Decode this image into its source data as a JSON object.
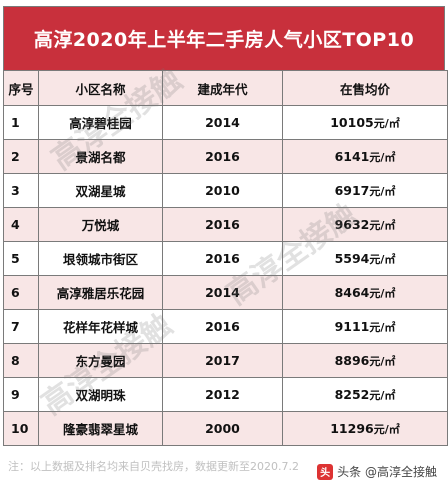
{
  "title": "高淳2020年上半年二手房人气小区TOP10",
  "headers": [
    "序号",
    "小区名称",
    "建成年代",
    "在售均价"
  ],
  "price_unit": "元/㎡",
  "rows": [
    {
      "rank": "1",
      "name": "高淳碧桂园",
      "year": "2014",
      "price": "10105"
    },
    {
      "rank": "2",
      "name": "景湖名都",
      "year": "2016",
      "price": "6141"
    },
    {
      "rank": "3",
      "name": "双湖星城",
      "year": "2010",
      "price": "6917"
    },
    {
      "rank": "4",
      "name": "万悦城",
      "year": "2016",
      "price": "9632"
    },
    {
      "rank": "5",
      "name": "垠领城市街区",
      "year": "2016",
      "price": "5594"
    },
    {
      "rank": "6",
      "name": "高淳雅居乐花园",
      "year": "2014",
      "price": "8464"
    },
    {
      "rank": "7",
      "name": "花样年花样城",
      "year": "2016",
      "price": "9111"
    },
    {
      "rank": "8",
      "name": "东方曼园",
      "year": "2017",
      "price": "8896"
    },
    {
      "rank": "9",
      "name": "双湖明珠",
      "year": "2012",
      "price": "8252"
    },
    {
      "rank": "10",
      "name": "隆豪翡翠星城",
      "year": "2000",
      "price": "11296"
    }
  ],
  "note": "注：以上数据及排名均来自贝壳找房，数据更新至2020.7.2",
  "credit": "头条 @高淳全接触",
  "credit_logo": "头",
  "watermark": "高淳全接触"
}
